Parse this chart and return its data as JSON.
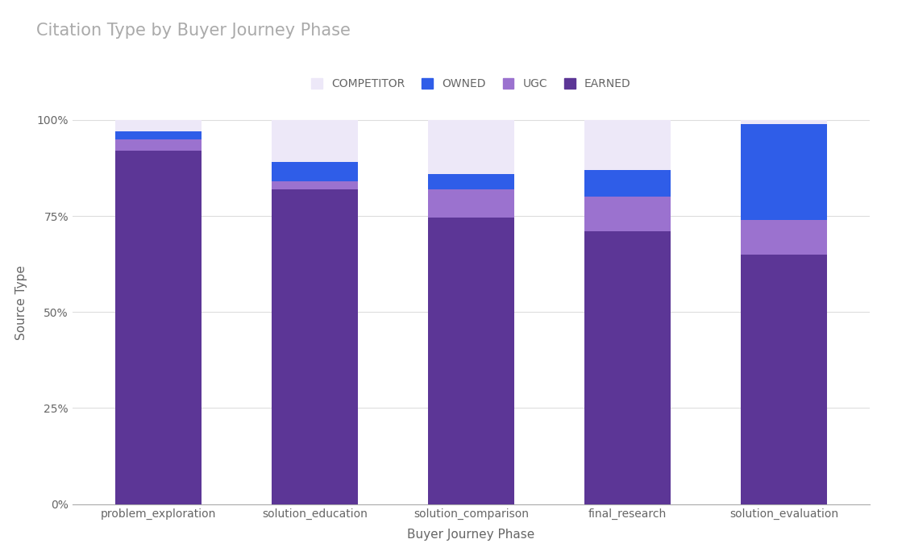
{
  "categories": [
    "problem_exploration",
    "solution_education",
    "solution_comparison",
    "final_research",
    "solution_evaluation"
  ],
  "series": {
    "EARNED": [
      0.92,
      0.82,
      0.745,
      0.71,
      0.65
    ],
    "UGC": [
      0.03,
      0.02,
      0.075,
      0.09,
      0.09
    ],
    "OWNED": [
      0.02,
      0.05,
      0.04,
      0.07,
      0.25
    ],
    "COMPETITOR": [
      0.03,
      0.11,
      0.14,
      0.13,
      0.01
    ]
  },
  "colors": {
    "EARNED": "#5c3696",
    "UGC": "#9b72cf",
    "OWNED": "#2f5de8",
    "COMPETITOR": "#ede8f8"
  },
  "title": "Citation Type by Buyer Journey Phase",
  "xlabel": "Buyer Journey Phase",
  "ylabel": "Source Type",
  "legend_order": [
    "COMPETITOR",
    "OWNED",
    "UGC",
    "EARNED"
  ],
  "yticks": [
    0,
    0.25,
    0.5,
    0.75,
    1.0
  ],
  "ytick_labels": [
    "0%",
    "25%",
    "50%",
    "75%",
    "100%"
  ],
  "background_color": "#ffffff",
  "title_color": "#aaaaaa",
  "bar_width": 0.55
}
